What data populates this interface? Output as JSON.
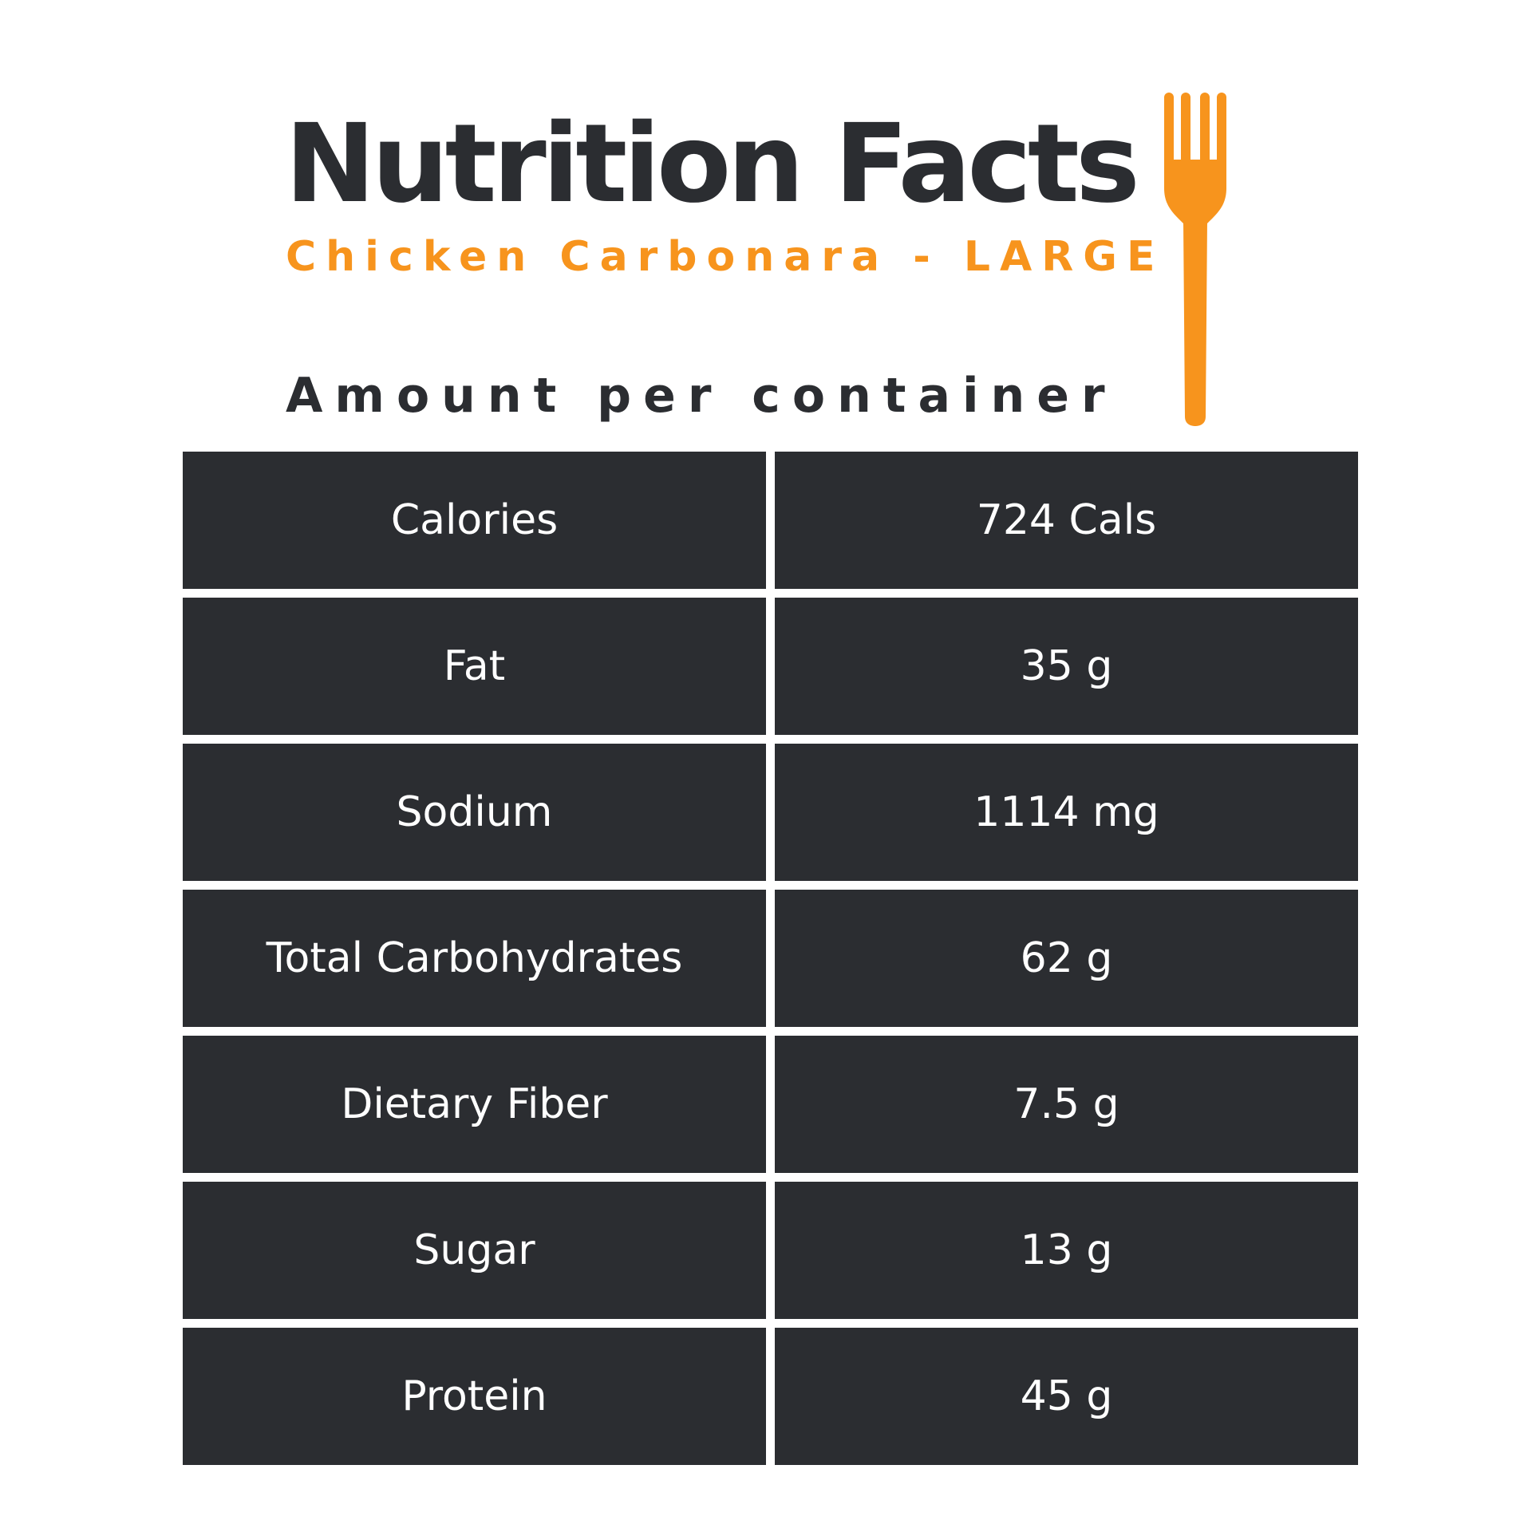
{
  "title": "Nutrition Facts",
  "subtitle": "Chicken Carbonara - LARGE",
  "amount_heading": "Amount per container",
  "colors": {
    "dark": "#2b2d31",
    "accent": "#f7941d",
    "text_on_dark": "#ffffff"
  },
  "icon": "fork-icon",
  "rows": [
    {
      "label": "Calories",
      "value": "724 Cals"
    },
    {
      "label": "Fat",
      "value": "35 g"
    },
    {
      "label": "Sodium",
      "value": "1114 mg"
    },
    {
      "label": "Total Carbohydrates",
      "value": "62 g"
    },
    {
      "label": "Dietary Fiber",
      "value": "7.5 g"
    },
    {
      "label": "Sugar",
      "value": "13 g"
    },
    {
      "label": "Protein",
      "value": "45 g"
    }
  ]
}
